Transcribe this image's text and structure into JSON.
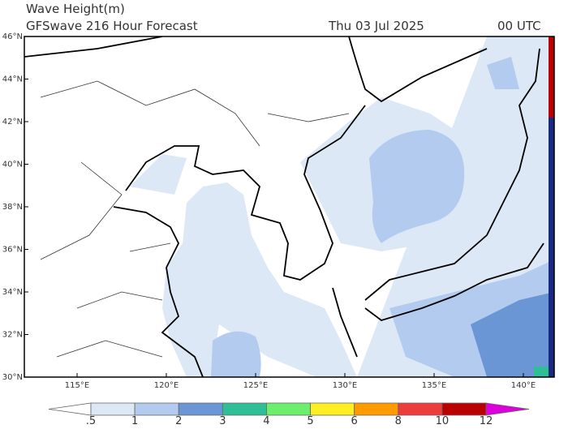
{
  "header": {
    "title": "Wave Height(m)",
    "subtitle": "GFSwave 216 Hour Forecast",
    "date": "Thu 03 Jul 2025",
    "time": "00 UTC"
  },
  "map": {
    "lat_labels": [
      "46°N",
      "44°N",
      "42°N",
      "40°N",
      "38°N",
      "36°N",
      "34°N",
      "32°N",
      "30°N"
    ],
    "lon_labels": [
      "115°E",
      "120°E",
      "125°E",
      "130°E",
      "135°E",
      "140°E"
    ]
  },
  "colorbar": {
    "labels": [
      ".5",
      "1",
      "2",
      "3",
      "4",
      "5",
      "6",
      "8",
      "10",
      "12"
    ],
    "colors": [
      "#ffffff",
      "#dde8f6",
      "#b3cbee",
      "#6b96d6",
      "#2fbf96",
      "#6cef6c",
      "#ffee22",
      "#ff9a00",
      "#ee3c3c",
      "#bb0000",
      "#dd00dd"
    ]
  }
}
